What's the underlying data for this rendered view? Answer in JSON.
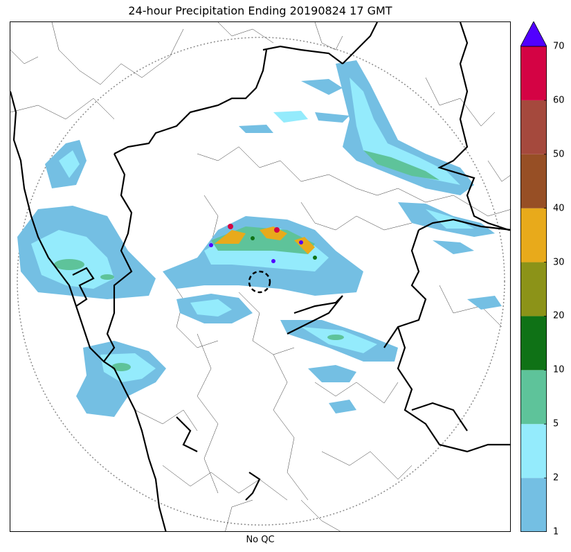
{
  "title": "24-hour Precipitation Ending 20190824 17 GMT",
  "xlabel": "No QC",
  "colorbar": {
    "ticks": [
      "1",
      "2",
      "5",
      "10",
      "20",
      "30",
      "40",
      "50",
      "60",
      "70"
    ],
    "colors": [
      "#74bfe3",
      "#94ebfc",
      "#5ec39a",
      "#0f7216",
      "#8c9318",
      "#e8aa1b",
      "#974f25",
      "#a5493d",
      "#d40344"
    ],
    "extend_color": "#5100ff"
  },
  "legend_units_note": ""
}
